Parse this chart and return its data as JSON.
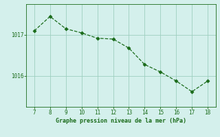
{
  "x": [
    7,
    8,
    9,
    10,
    11,
    12,
    13,
    14,
    15,
    16,
    17,
    18
  ],
  "y": [
    1017.1,
    1017.45,
    1017.15,
    1017.05,
    1016.92,
    1016.9,
    1016.68,
    1016.28,
    1016.1,
    1015.88,
    1015.62,
    1015.88
  ],
  "xlim": [
    6.5,
    18.5
  ],
  "ylim": [
    1015.25,
    1017.75
  ],
  "yticks": [
    1016,
    1017
  ],
  "xticks": [
    7,
    8,
    9,
    10,
    11,
    12,
    13,
    14,
    15,
    16,
    17,
    18
  ],
  "xlabel": "Graphe pression niveau de la mer (hPa)",
  "line_color": "#1a6b1a",
  "marker_color": "#1a6b1a",
  "bg_color": "#d4f0ec",
  "grid_color": "#9ecfbf",
  "tick_color": "#1a6b1a",
  "label_color": "#1a6b1a"
}
